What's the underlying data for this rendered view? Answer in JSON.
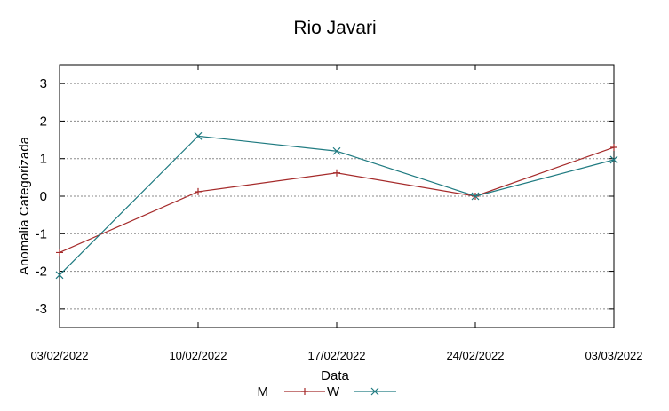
{
  "chart_data": {
    "type": "line",
    "title": "Rio Javari",
    "xlabel": "Data",
    "ylabel": "Anomalia Categorizada",
    "categories": [
      "03/02/2022",
      "10/02/2022",
      "17/02/2022",
      "24/02/2022",
      "03/03/2022"
    ],
    "ylim": [
      -3.5,
      3.5
    ],
    "yticks": [
      "3",
      "2",
      "1",
      "0",
      "-1",
      "-2",
      "-3"
    ],
    "ytick_values": [
      3,
      2,
      1,
      0,
      -1,
      -2,
      -3
    ],
    "grid": true,
    "legend_position": "bottom-center",
    "series": [
      {
        "name": "M",
        "color": "#a52a2a",
        "marker": "plus",
        "values": [
          -1.5,
          0.12,
          0.62,
          0.0,
          1.3
        ]
      },
      {
        "name": "W",
        "color": "#1e7a80",
        "marker": "cross",
        "values": [
          -2.1,
          1.6,
          1.2,
          0.0,
          0.97
        ]
      }
    ]
  }
}
